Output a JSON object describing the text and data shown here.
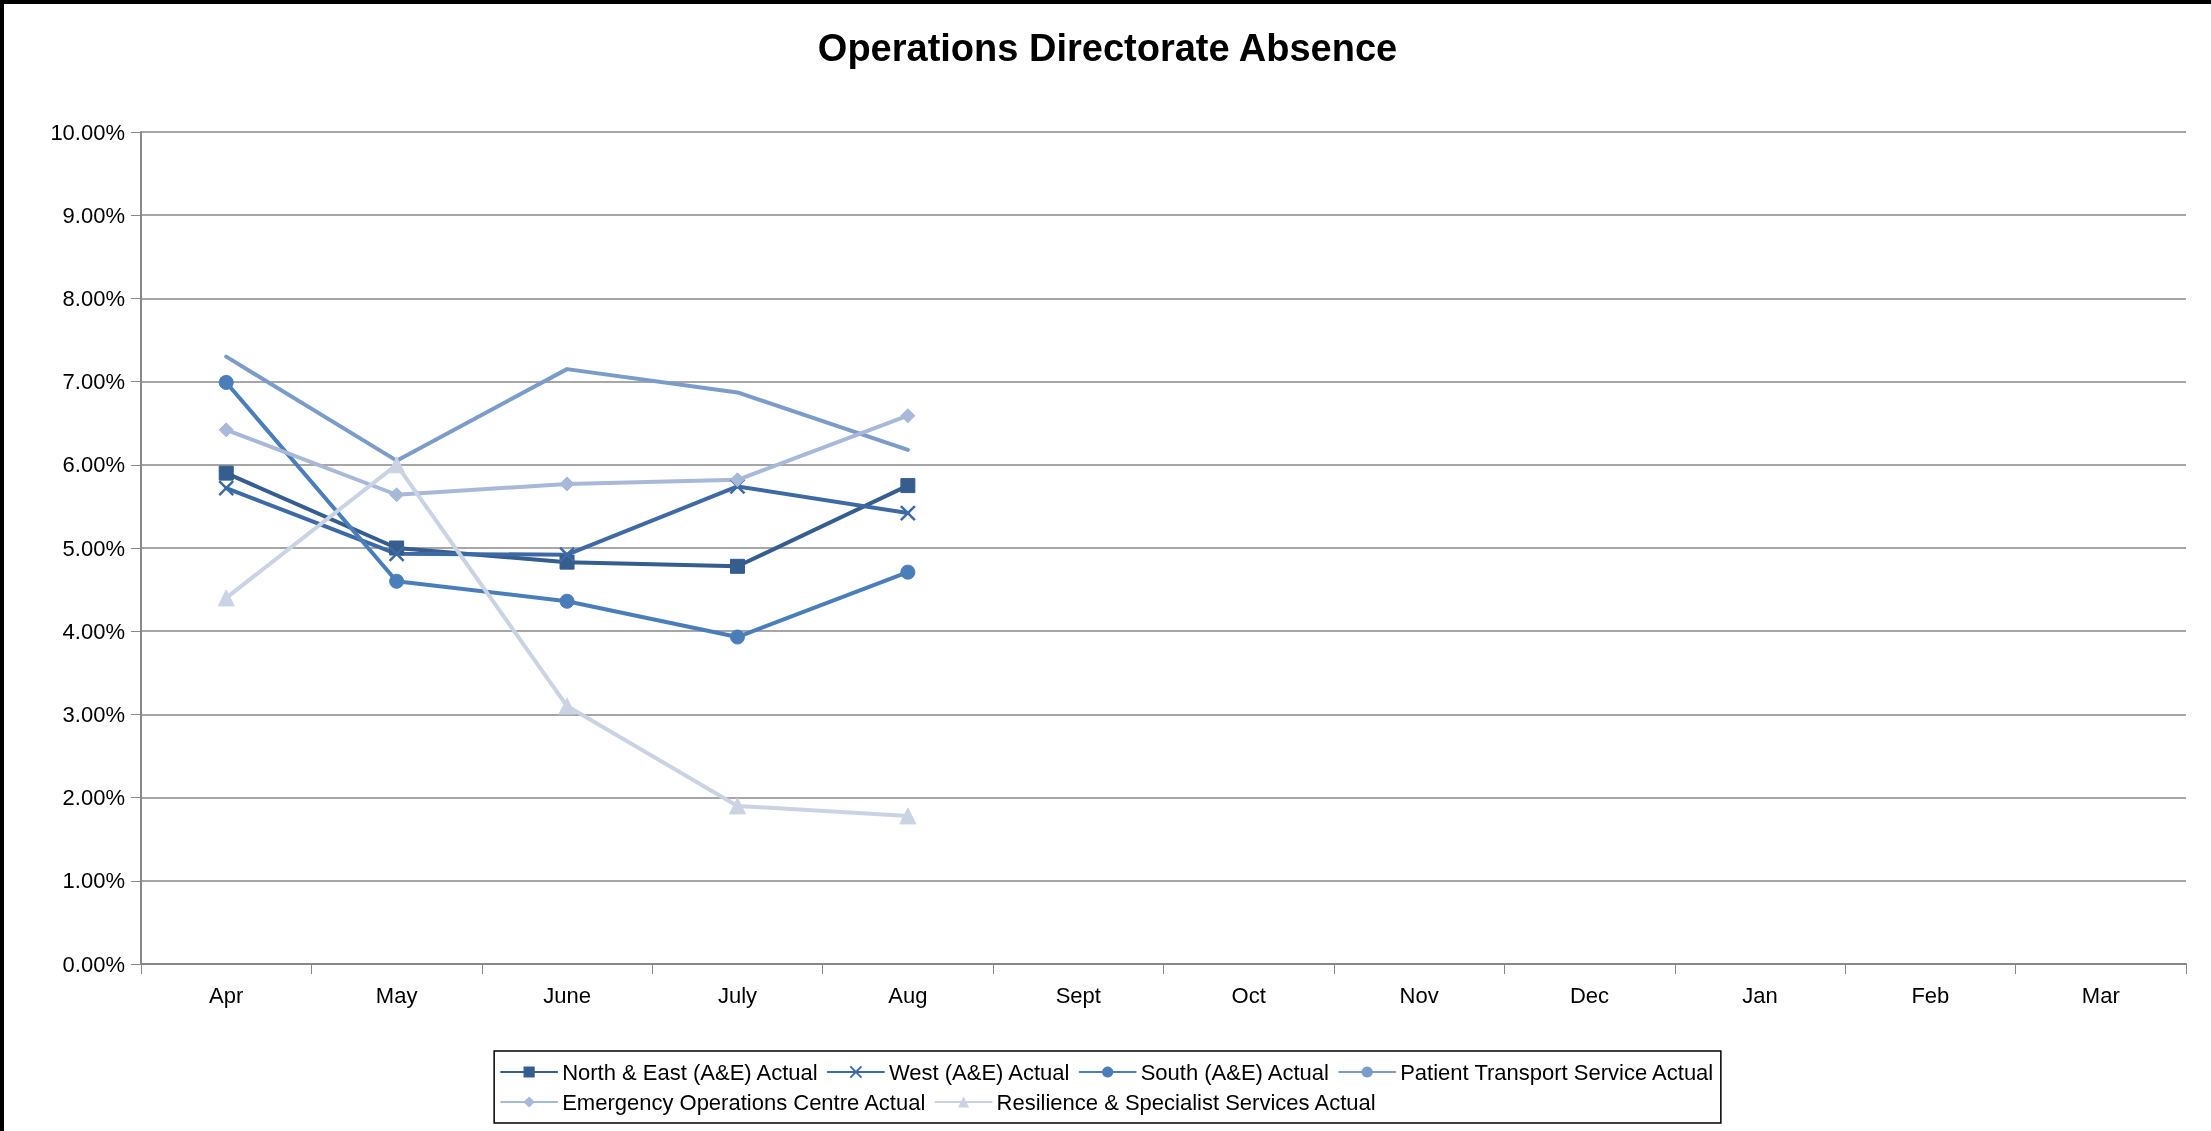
{
  "chart_data": {
    "type": "line",
    "title": "Operations Directorate Absence",
    "categories": [
      "Apr",
      "May",
      "June",
      "July",
      "Aug",
      "Sept",
      "Oct",
      "Nov",
      "Dec",
      "Jan",
      "Feb",
      "Mar"
    ],
    "series": [
      {
        "name": "North & East (A&E) Actual",
        "color": "#355d8e",
        "marker": "square",
        "values": [
          5.9,
          5.0,
          4.83,
          4.78,
          5.75,
          null,
          null,
          null,
          null,
          null,
          null,
          null
        ]
      },
      {
        "name": "West (A&E) Actual",
        "color": "#3d6aa5",
        "marker": "cross",
        "values": [
          5.72,
          4.93,
          4.92,
          5.74,
          5.42,
          null,
          null,
          null,
          null,
          null,
          null,
          null
        ]
      },
      {
        "name": "South (A&E) Actual",
        "color": "#4a7ebb",
        "marker": "circle",
        "values": [
          6.99,
          4.6,
          4.36,
          3.93,
          4.71,
          null,
          null,
          null,
          null,
          null,
          null,
          null
        ]
      },
      {
        "name": "Patient Transport Service Actual",
        "color": "#7b9bc8",
        "marker": "none",
        "values": [
          7.3,
          6.05,
          7.15,
          6.87,
          6.18,
          null,
          null,
          null,
          null,
          null,
          null,
          null
        ]
      },
      {
        "name": "Emergency Operations Centre Actual",
        "color": "#a7b8d8",
        "marker": "diamond",
        "values": [
          6.42,
          5.64,
          5.77,
          5.82,
          6.59,
          null,
          null,
          null,
          null,
          null,
          null,
          null
        ]
      },
      {
        "name": "Resilience & Specialist Services Actual",
        "color": "#cad3e4",
        "marker": "triangle",
        "values": [
          4.4,
          6.0,
          3.1,
          1.9,
          1.78,
          null,
          null,
          null,
          null,
          null,
          null,
          null
        ]
      }
    ],
    "ylim": [
      0,
      10
    ],
    "yticks": [
      {
        "value": 0,
        "label": "0.00%"
      },
      {
        "value": 1,
        "label": "1.00%"
      },
      {
        "value": 2,
        "label": "2.00%"
      },
      {
        "value": 3,
        "label": "3.00%"
      },
      {
        "value": 4,
        "label": "4.00%"
      },
      {
        "value": 5,
        "label": "5.00%"
      },
      {
        "value": 6,
        "label": "6.00%"
      },
      {
        "value": 7,
        "label": "7.00%"
      },
      {
        "value": 8,
        "label": "8.00%"
      },
      {
        "value": 9,
        "label": "9.00%"
      },
      {
        "value": 10,
        "label": "10.00%"
      }
    ],
    "grid": "y",
    "legend": "bottom",
    "line_style": "solid"
  }
}
